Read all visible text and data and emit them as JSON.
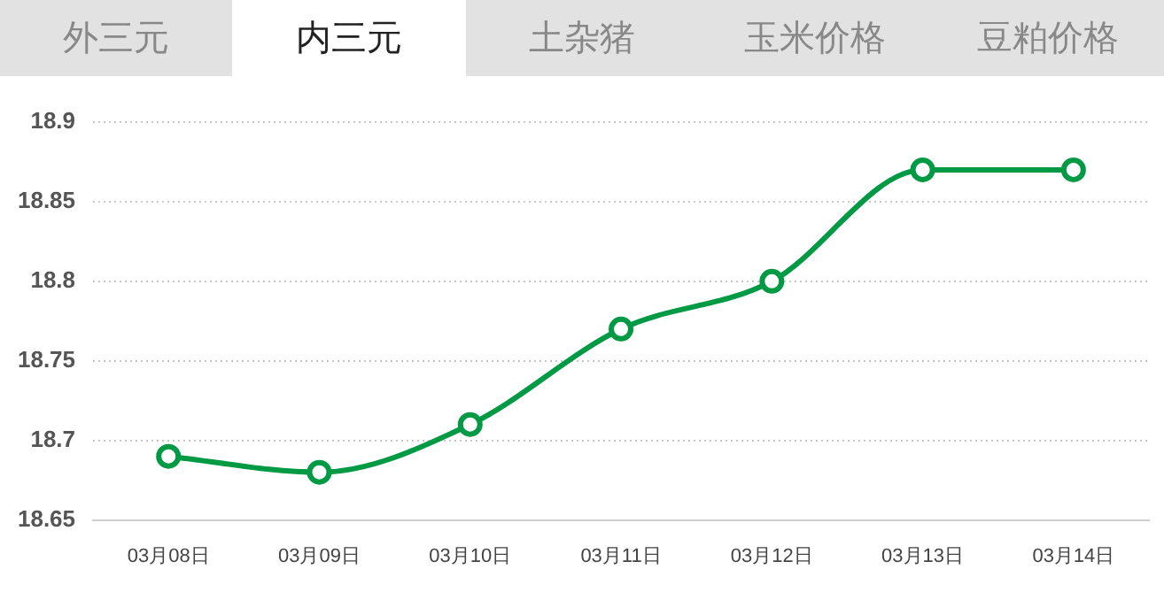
{
  "chart_data": {
    "type": "line",
    "annotations": [
      "外三元",
      "内三元",
      "土杂猪",
      "玉米价格",
      "豆粕价格"
    ],
    "categories": [
      "03月08日",
      "03月09日",
      "03月10日",
      "03月11日",
      "03月12日",
      "03月13日",
      "03月14日"
    ],
    "series": [
      {
        "color": "#009944",
        "values": [
          18.69,
          18.68,
          18.71,
          18.77,
          18.8,
          18.87,
          18.87
        ]
      }
    ],
    "ylim": [
      18.65,
      18.9
    ],
    "yticks": [
      18.65,
      18.7,
      18.75,
      18.8,
      18.85,
      18.9
    ],
    "grid": "y",
    "marker": "circle",
    "line_style": "solid",
    "legend": false
  }
}
